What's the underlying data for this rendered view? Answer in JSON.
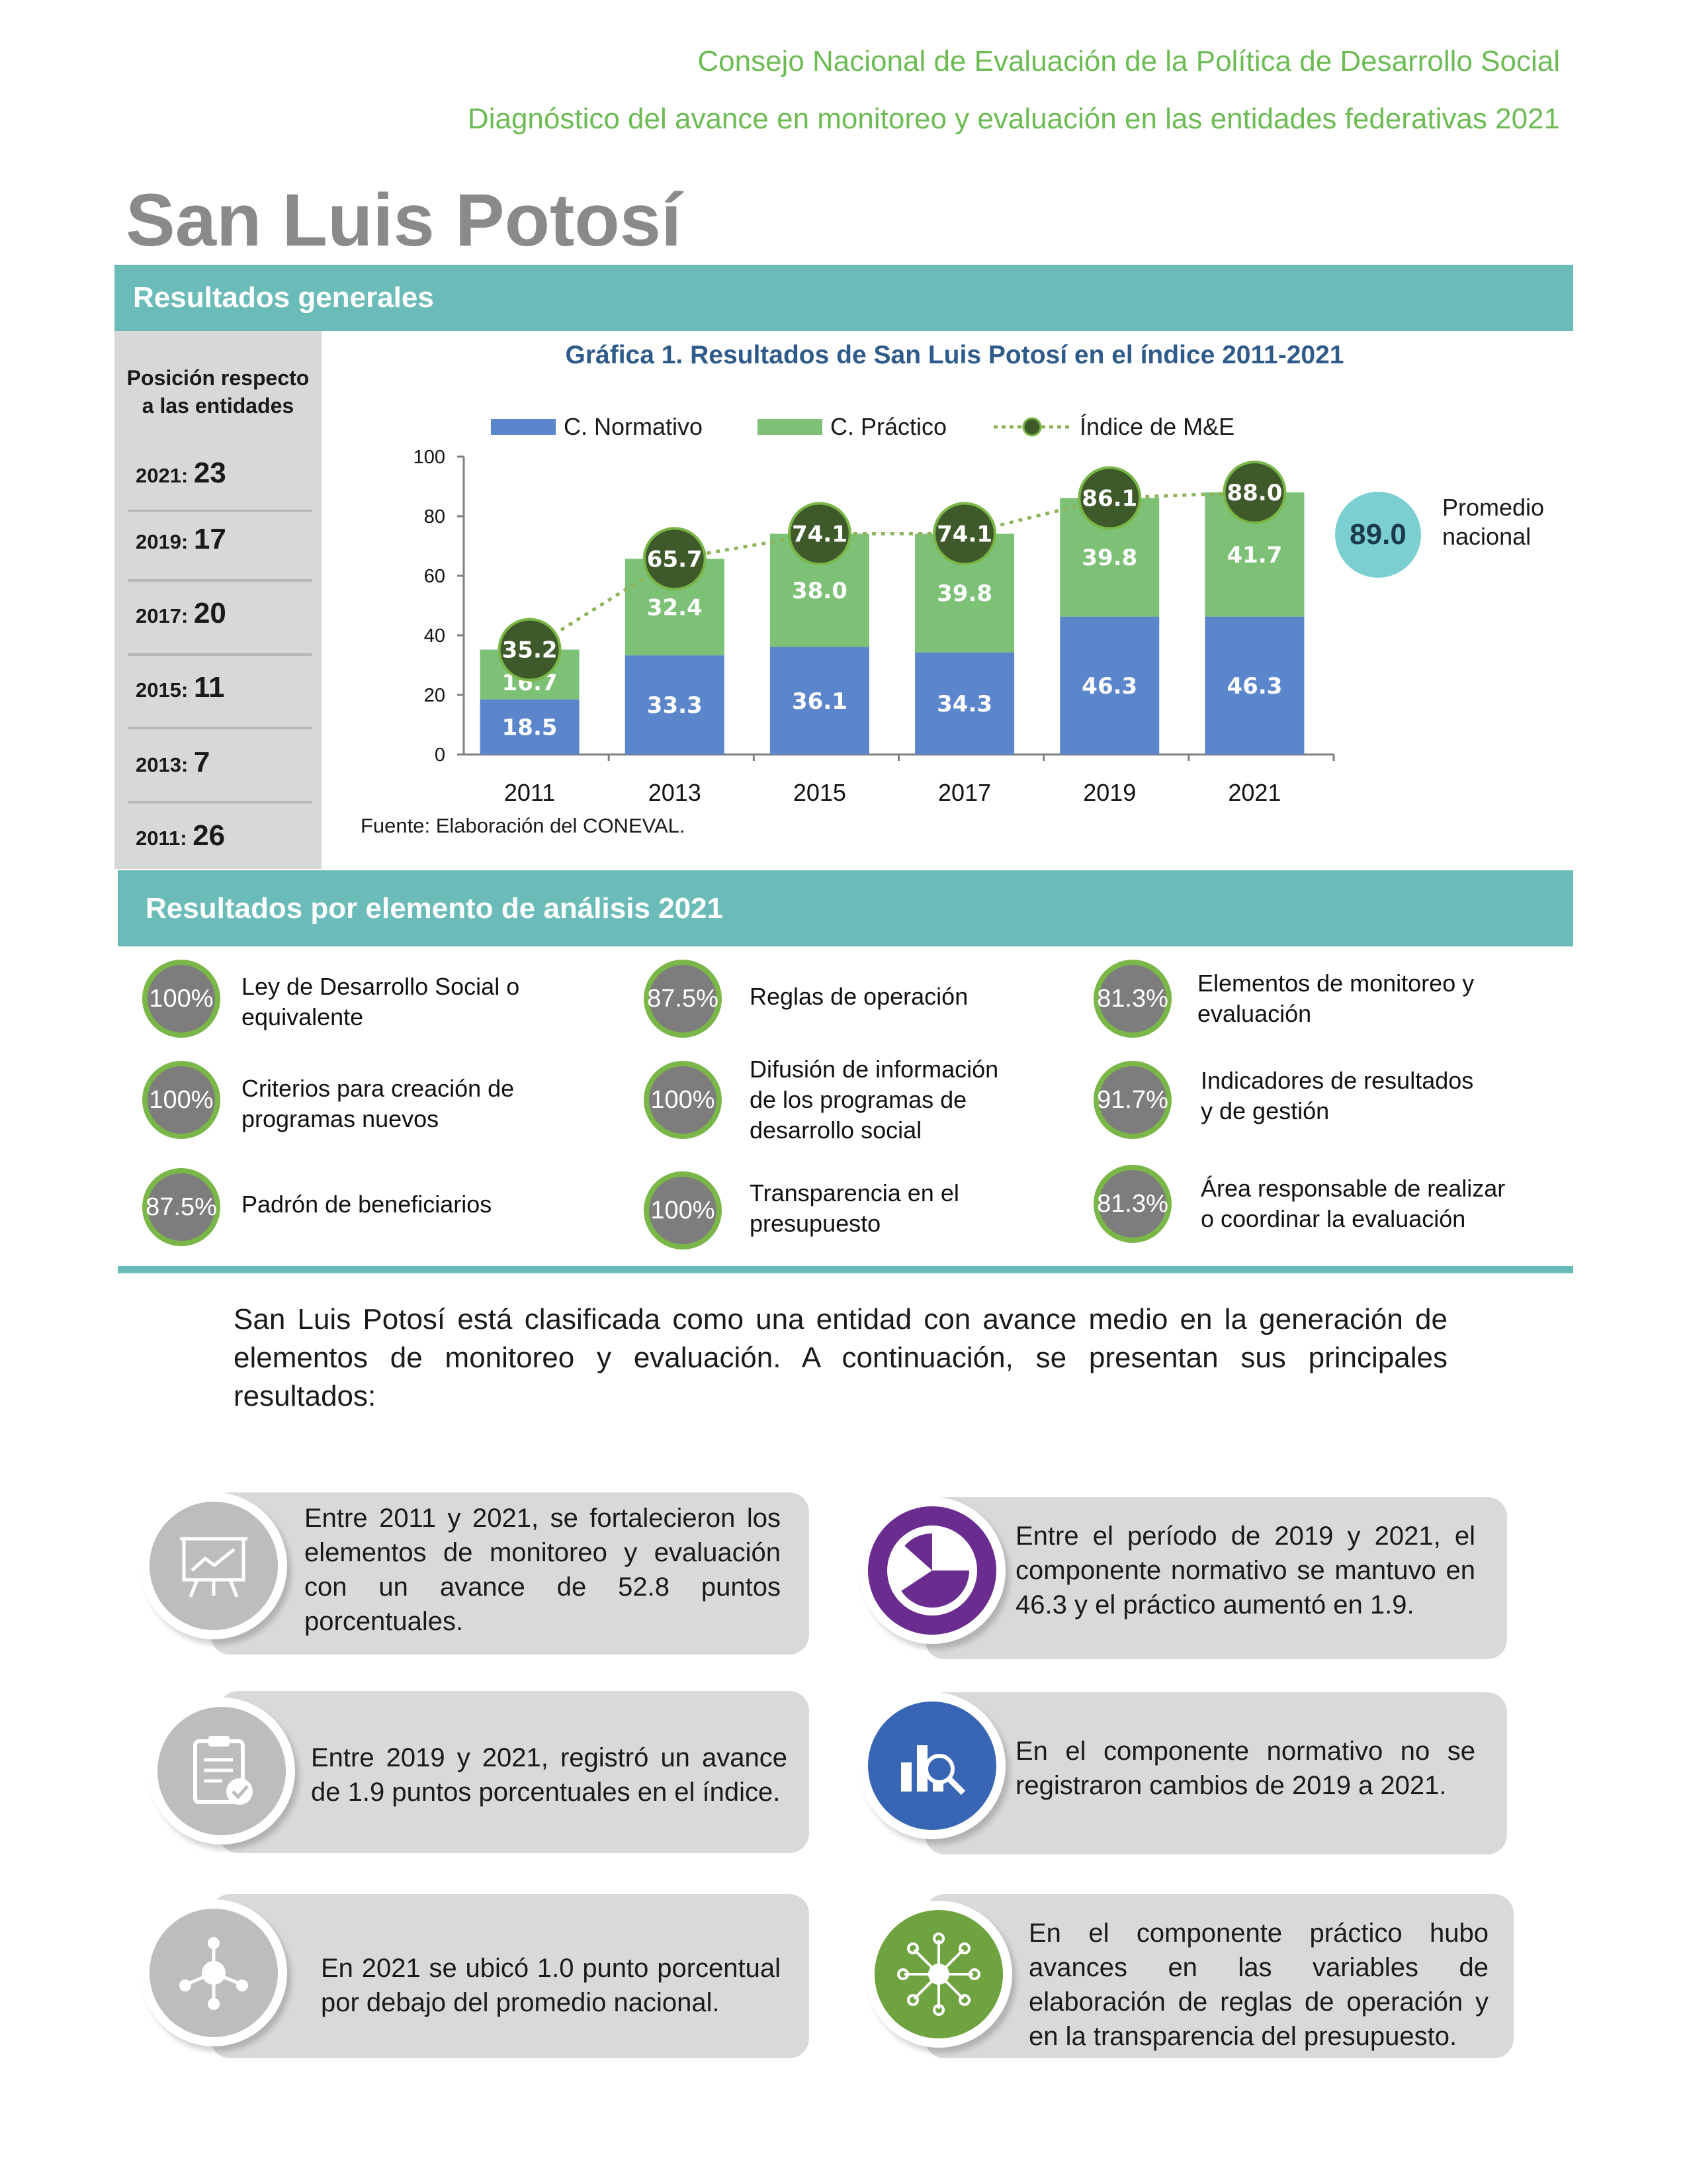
{
  "header": {
    "line1": "Consejo Nacional de Evaluación de la Política de Desarrollo Social",
    "line2": "Diagnóstico del avance en monitoreo y evaluación en las entidades federativas 2021"
  },
  "state_title": "San Luis Potosí",
  "section_general": "Resultados generales",
  "sidebar": {
    "title_line1": "Posición respecto",
    "title_line2": "a las entidades",
    "rankings": [
      {
        "year": "2021:",
        "value": "23"
      },
      {
        "year": "2019:",
        "value": "17"
      },
      {
        "year": "2017:",
        "value": "20"
      },
      {
        "year": "2015:",
        "value": "11"
      },
      {
        "year": "2013:",
        "value": "7"
      },
      {
        "year": "2011:",
        "value": "26"
      }
    ]
  },
  "chart_data": {
    "type": "bar",
    "title": "Gráfica 1. Resultados de San Luis Potosí en el índice 2011-2021",
    "categories": [
      "2011",
      "2013",
      "2015",
      "2017",
      "2019",
      "2021"
    ],
    "series": [
      {
        "name": "C. Normativo",
        "values": [
          18.5,
          33.3,
          36.1,
          34.3,
          46.3,
          46.3
        ],
        "color": "#5b86cb"
      },
      {
        "name": "C. Práctico",
        "values": [
          16.7,
          32.4,
          38.0,
          39.8,
          39.8,
          41.7
        ],
        "color": "#7cc176"
      },
      {
        "name": "Índice de M&E",
        "type": "line",
        "values": [
          35.2,
          65.7,
          74.1,
          74.1,
          86.1,
          88.0
        ],
        "color": "#3f5a2a"
      }
    ],
    "value_labels": {
      "normativo": [
        "18.5",
        "33.3",
        "36.1",
        "34.3",
        "46.3",
        "46.3"
      ],
      "practico": [
        "16.7",
        "32.4",
        "38.0",
        "39.8",
        "39.8",
        "41.7"
      ],
      "indice": [
        "35.2",
        "65.7",
        "74.1",
        "74.1",
        "86.1",
        "88.0"
      ]
    },
    "yticks": [
      "0",
      "20",
      "40",
      "60",
      "80",
      "100"
    ],
    "ylim": [
      0,
      100
    ],
    "stacked": true,
    "legend_position": "top"
  },
  "source": "Fuente: Elaboración del CONEVAL.",
  "national_average": {
    "value": "89.0",
    "label_line1": "Promedio",
    "label_line2": "nacional"
  },
  "section_elements": "Resultados por elemento de análisis 2021",
  "elements": [
    {
      "pct": "100%",
      "line1": "Ley de Desarrollo Social o",
      "line2": "equivalente"
    },
    {
      "pct": "87.5%",
      "line1": "Reglas de operación"
    },
    {
      "pct": "81.3%",
      "line1": "Elementos de monitoreo y",
      "line2": "evaluación"
    },
    {
      "pct": "100%",
      "line1": "Criterios para creación de",
      "line2": "programas nuevos"
    },
    {
      "pct": "100%",
      "line1": "Difusión de información",
      "line2": "de los programas de",
      "line3": "desarrollo social"
    },
    {
      "pct": "91.7%",
      "line1": "Indicadores de resultados",
      "line2": "y de gestión"
    },
    {
      "pct": "87.5%",
      "line1": "Padrón de beneficiarios"
    },
    {
      "pct": "100%",
      "line1": "Transparencia en el",
      "line2": "presupuesto"
    },
    {
      "pct": "81.3%",
      "line1": "Área responsable de realizar",
      "line2": "o coordinar la evaluación"
    }
  ],
  "summary": "San Luis Potosí está clasificada como una entidad con avance medio en la generación de elementos de monitoreo y evaluación. A continuación, se presentan sus principales resultados:",
  "cards": [
    {
      "icon": "presentation-chart-icon",
      "text": "Entre 2011 y 2021, se fortalecieron los elementos de monitoreo y evaluación con un avance de 52.8 puntos porcentuales."
    },
    {
      "icon": "pie-chart-icon",
      "text": "Entre el período de 2019 y 2021, el componente normativo se mantuvo en 46.3 y el práctico aumentó en 1.9."
    },
    {
      "icon": "clipboard-check-icon",
      "text": "Entre 2019 y 2021, registró un avance de 1.9 puntos porcentuales en el índice."
    },
    {
      "icon": "bar-chart-magnifier-icon",
      "text": "En el componente normativo no se registraron cambios de 2019 a 2021."
    },
    {
      "icon": "network-hub-icon",
      "text": "En 2021 se ubicó 1.0 punto porcentual por debajo del promedio nacional."
    },
    {
      "icon": "network-star-icon",
      "text": "En el componente práctico hubo avances en las variables de elaboración de reglas de operación y en la transparencia del presupuesto."
    }
  ],
  "colors": {
    "teal": "#6bbcb9",
    "header_green": "#6dbb54",
    "purple": "#6a2c8f",
    "blue": "#3866b4",
    "green": "#6fa33f",
    "gray_icon": "#bdbdbd"
  }
}
